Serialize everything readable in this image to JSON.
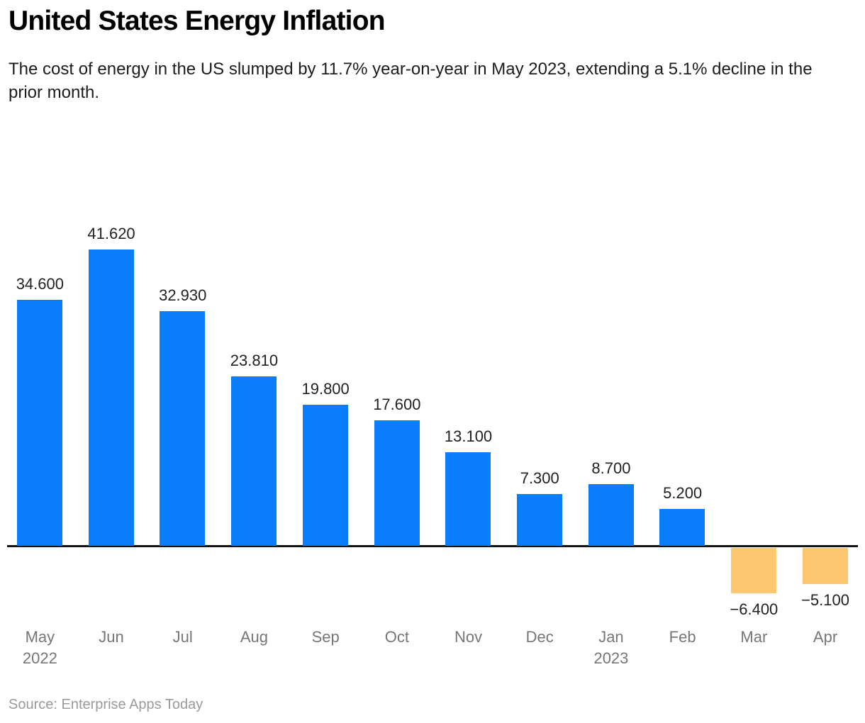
{
  "header": {
    "title": "United States Energy Inflation",
    "subtitle": "The cost of energy in the US slumped by 11.7% year-on-year in May 2023, extending a 5.1% decline in the prior month."
  },
  "footer": {
    "source": "Source: Enterprise Apps Today"
  },
  "colors": {
    "positive_bar": "#0a7dfa",
    "negative_bar": "#fcc770",
    "axis_line": "#111417",
    "value_label": "#212121",
    "axis_label": "#767676",
    "source_text": "#9a9a9a"
  },
  "chart_data": {
    "type": "bar",
    "title": "United States Energy Inflation",
    "xlabel": "",
    "ylabel": "",
    "ylim": [
      -10,
      45
    ],
    "grid": false,
    "legend": false,
    "categories": [
      "May",
      "Jun",
      "Jul",
      "Aug",
      "Sep",
      "Oct",
      "Nov",
      "Dec",
      "Jan",
      "Feb",
      "Mar",
      "Apr"
    ],
    "category_sublabels": [
      "2022",
      "",
      "",
      "",
      "",
      "",
      "",
      "",
      "2023",
      "",
      "",
      ""
    ],
    "values": [
      34.6,
      41.62,
      32.93,
      23.81,
      19.8,
      17.6,
      13.1,
      7.3,
      8.7,
      5.2,
      -6.4,
      -5.1
    ],
    "value_labels": [
      "34.600",
      "41.620",
      "32.930",
      "23.810",
      "19.800",
      "17.600",
      "13.100",
      "7.300",
      "8.700",
      "5.200",
      "−6.400",
      "−5.100"
    ]
  }
}
